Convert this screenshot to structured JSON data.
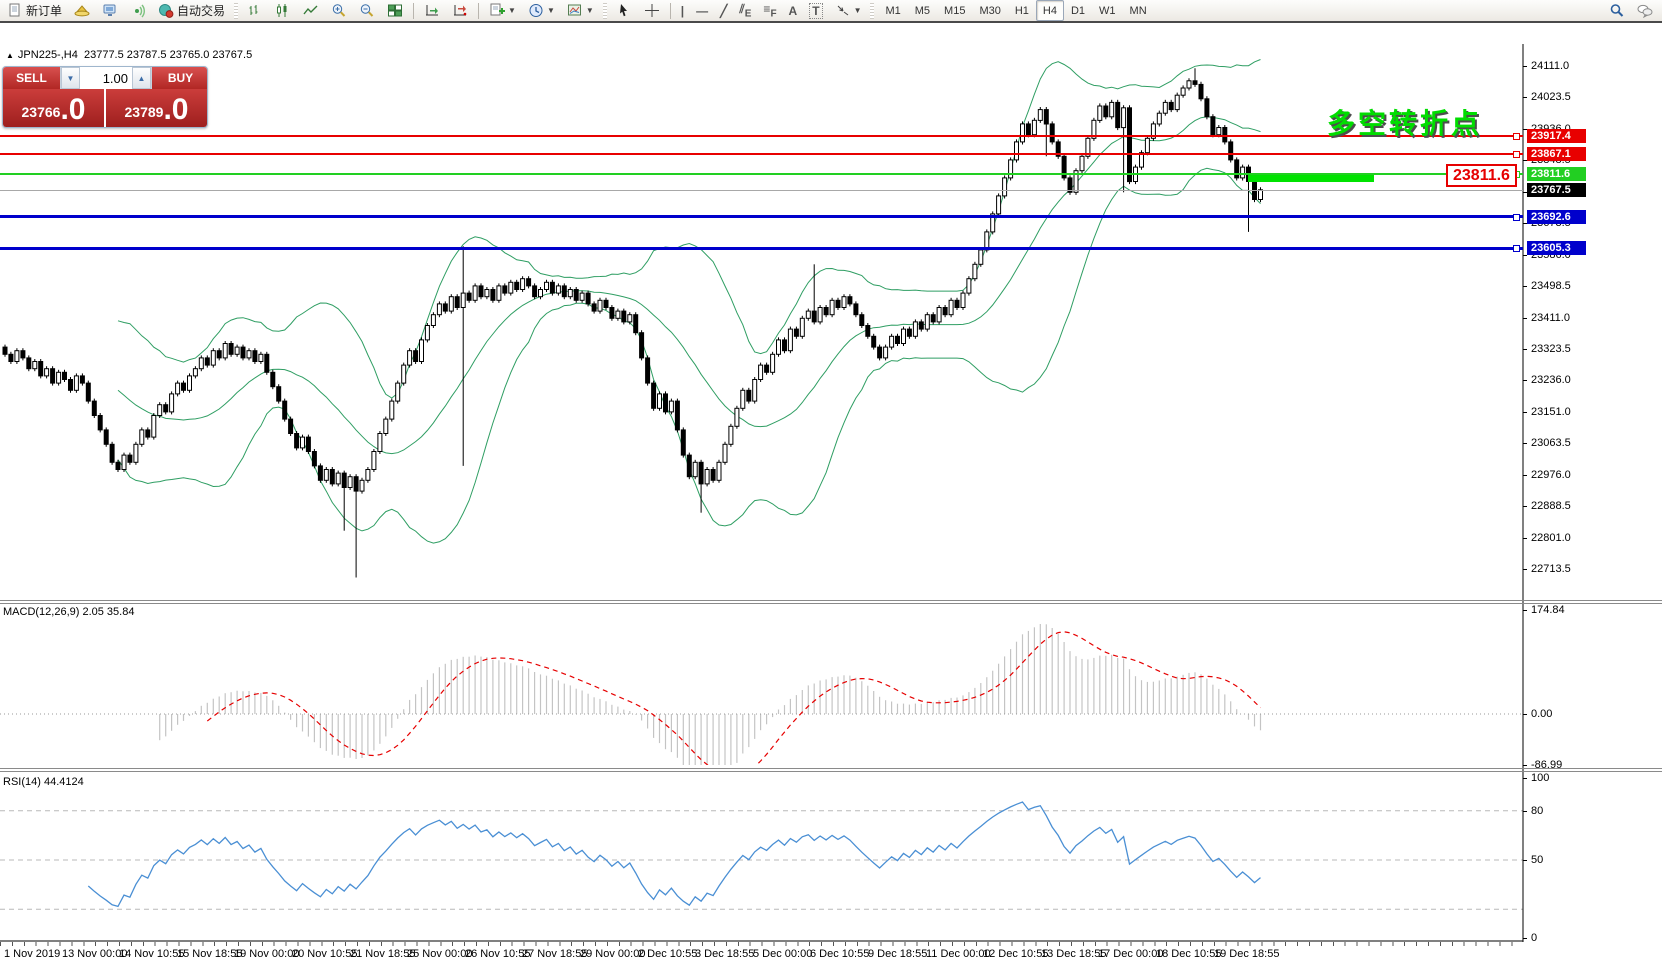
{
  "toolbar": {
    "new_order_label": "新订单",
    "autotrade_label": "自动交易",
    "timeframes": [
      "M1",
      "M5",
      "M15",
      "M30",
      "H1",
      "H4",
      "D1",
      "W1",
      "MN"
    ],
    "active_timeframe": "H4",
    "tool_glyphs": {
      "channel_tool": "E",
      "fibonacci_tool": "F",
      "text_tool": "A",
      "label_tool": "T"
    }
  },
  "chart": {
    "collapse_arrow": "▲",
    "title_symbol": "JPN225-,H4",
    "title_ohlc": "23777.5 23787.5 23765.0 23767.5"
  },
  "one_click": {
    "sell_label": "SELL",
    "buy_label": "BUY",
    "volume": "1.00",
    "sell_price": "23766",
    "sell_price_frac": ".0",
    "buy_price": "23789",
    "buy_price_frac": ".0",
    "spin_down": "▼",
    "spin_up": "▲"
  },
  "annotations": {
    "turning_point_text": "多空转折点",
    "price_box_text": "23811.6"
  },
  "levels": [
    {
      "label": "23917.4",
      "price": 23917.4,
      "color": "#e80000",
      "thickness": 2
    },
    {
      "label": "23867.1",
      "price": 23867.1,
      "color": "#e80000",
      "thickness": 2
    },
    {
      "label": "23811.6",
      "price": 23811.6,
      "color": "#22cf22",
      "thickness": 2
    },
    {
      "label": "23692.6",
      "price": 23692.6,
      "color": "#0000cc",
      "thickness": 3
    },
    {
      "label": "23605.3",
      "price": 23605.3,
      "color": "#0000cc",
      "thickness": 3
    }
  ],
  "current_price": {
    "label": "23767.5",
    "price": 23767.5,
    "line_color": "#a8a8a8",
    "tag_bg": "#000000"
  },
  "price_axis_ticks": [
    "24111.0",
    "24023.5",
    "23936.0",
    "23848.5",
    "23761.0",
    "23673.5",
    "23586.0",
    "23498.5",
    "23411.0",
    "23323.5",
    "23236.0",
    "23151.0",
    "23063.5",
    "22976.0",
    "22888.5",
    "22801.0",
    "22713.5"
  ],
  "macd_panel": {
    "label": "MACD(12,26,9) 2.05 35.84",
    "ticks": [
      "174.84",
      "0.00",
      "-86.99"
    ],
    "tick_values": [
      174.84,
      0,
      -86.99
    ]
  },
  "rsi_panel": {
    "label": "RSI(14) 44.4124",
    "ticks": [
      "100",
      "80",
      "50",
      "0"
    ],
    "tick_values": [
      100,
      80,
      50,
      0
    ],
    "dashed_levels": [
      80,
      50,
      20
    ]
  },
  "time_axis": [
    "1 Nov 2019",
    "13 Nov 00:00",
    "14 Nov 10:55",
    "15 Nov 18:55",
    "19 Nov 00:00",
    "20 Nov 10:55",
    "21 Nov 18:55",
    "25 Nov 00:00",
    "26 Nov 10:55",
    "27 Nov 18:55",
    "29 Nov 00:00",
    "2 Dec 10:55",
    "3 Dec 18:55",
    "5 Dec 00:00",
    "6 Dec 10:55",
    "9 Dec 18:55",
    "11 Dec 00:00",
    "12 Dec 10:55",
    "13 Dec 18:55",
    "17 Dec 00:00",
    "18 Dec 10:55",
    "19 Dec 18:55"
  ],
  "chart_data": {
    "type": "candlestick",
    "symbol": "JPN225-",
    "period": "H4",
    "ohlc_display": {
      "open": "23777.5",
      "high": "23787.5",
      "low": "23765.0",
      "close": "23767.5"
    },
    "y_axis": {
      "min": 22713.5,
      "max": 24111.0,
      "tick_step": 87.5
    },
    "first_open": 23330,
    "closes": [
      23310,
      23290,
      23320,
      23300,
      23270,
      23290,
      23250,
      23270,
      23230,
      23260,
      23240,
      23210,
      23250,
      23230,
      23180,
      23140,
      23100,
      23060,
      23010,
      22990,
      23030,
      23010,
      23060,
      23100,
      23080,
      23140,
      23170,
      23150,
      23200,
      23230,
      23210,
      23250,
      23270,
      23300,
      23280,
      23320,
      23300,
      23340,
      23310,
      23330,
      23300,
      23320,
      23290,
      23310,
      23260,
      23220,
      23180,
      23130,
      23090,
      23050,
      23080,
      23040,
      23000,
      22960,
      22990,
      22950,
      22980,
      22940,
      22970,
      22930,
      22960,
      22990,
      23040,
      23090,
      23130,
      23180,
      23230,
      23280,
      23320,
      23290,
      23350,
      23390,
      23420,
      23450,
      23430,
      23470,
      23440,
      23480,
      23460,
      23500,
      23470,
      23490,
      23460,
      23500,
      23480,
      23510,
      23490,
      23520,
      23500,
      23470,
      23490,
      23510,
      23480,
      23500,
      23470,
      23490,
      23460,
      23480,
      23450,
      23430,
      23460,
      23440,
      23410,
      23430,
      23400,
      23420,
      23370,
      23300,
      23230,
      23160,
      23200,
      23150,
      23180,
      23100,
      23030,
      22970,
      23010,
      22950,
      22990,
      22960,
      23010,
      23060,
      23110,
      23160,
      23210,
      23180,
      23240,
      23280,
      23260,
      23310,
      23350,
      23320,
      23380,
      23360,
      23410,
      23430,
      23400,
      23440,
      23420,
      23460,
      23440,
      23470,
      23450,
      23420,
      23390,
      23360,
      23330,
      23300,
      23330,
      23360,
      23340,
      23380,
      23360,
      23400,
      23380,
      23420,
      23400,
      23440,
      23420,
      23460,
      23440,
      23480,
      23520,
      23560,
      23600,
      23650,
      23700,
      23750,
      23800,
      23850,
      23900,
      23950,
      23920,
      23960,
      23990,
      23950,
      23900,
      23860,
      23800,
      23760,
      23820,
      23860,
      23910,
      23960,
      24000,
      23970,
      24010,
      23940,
      23995,
      23790,
      23830,
      23870,
      23910,
      23950,
      23980,
      24010,
      23990,
      24030,
      24050,
      24070,
      24060,
      24020,
      23970,
      23920,
      23940,
      23900,
      23850,
      23800,
      23830,
      23790,
      23740,
      23767
    ],
    "wick_overrides": {
      "57": {
        "low": 22820
      },
      "59": {
        "low": 22690
      },
      "77": {
        "high": 23610,
        "low": 23000
      },
      "117": {
        "low": 22870
      },
      "136": {
        "high": 23560
      },
      "175": {
        "low": 23860
      },
      "188": {
        "low": 23760
      },
      "200": {
        "high": 24105
      },
      "209": {
        "low": 23650
      }
    },
    "overlays": {
      "bollinger_period": 20,
      "bollinger_deviation": 2,
      "band_color": "#2f9e63"
    },
    "indicators": [
      {
        "name": "MACD",
        "params": "12,26,9",
        "value": 2.05,
        "signal_value": 35.84,
        "axis_max": 174.84,
        "axis_min": -86.99,
        "histogram_color": "#c4c4c4",
        "signal_color": "#e60000"
      },
      {
        "name": "RSI",
        "params": "14",
        "value": 44.4124,
        "line_color": "#4a8fd4",
        "levels": [
          80,
          50,
          20
        ]
      }
    ]
  }
}
